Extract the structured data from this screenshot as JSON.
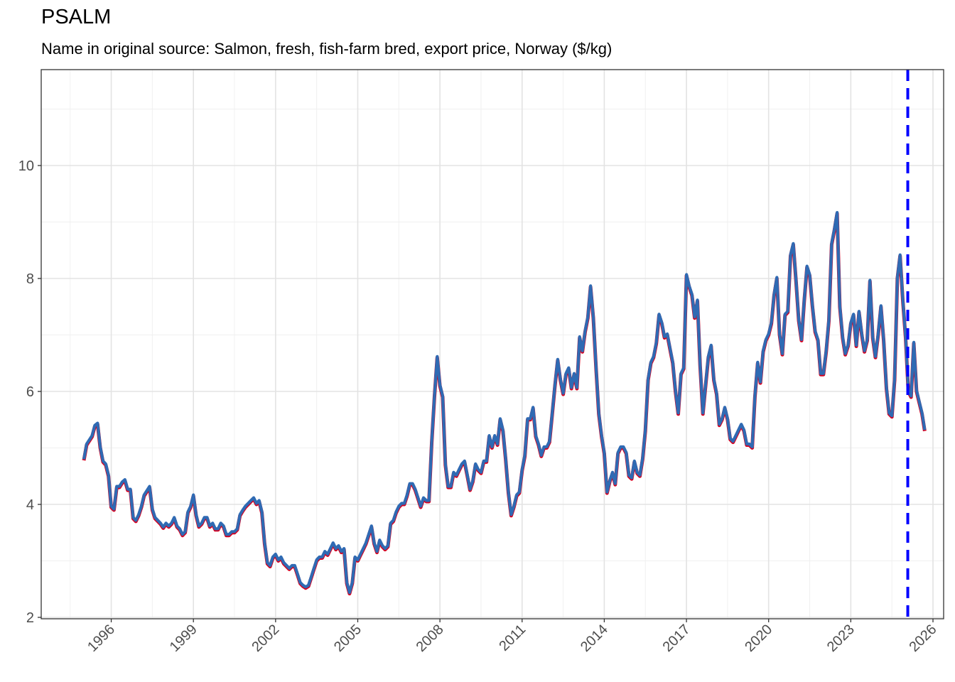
{
  "chart_data": {
    "type": "line",
    "title": "PSALM",
    "subtitle": "Name in original source: Salmon, fresh, fish-farm bred, export price, Norway ($/kg)",
    "xlabel": "",
    "ylabel": "",
    "xlim": [
      1994.5,
      2026.5
    ],
    "ylim": [
      1.97,
      11.7
    ],
    "x_ticks": [
      1996,
      1999,
      2002,
      2005,
      2008,
      2011,
      2014,
      2017,
      2020,
      2023,
      2026
    ],
    "x_tick_labels": [
      "1996",
      "1999",
      "2002",
      "2005",
      "2008",
      "2011",
      "2014",
      "2017",
      "2020",
      "2023",
      "2026"
    ],
    "y_ticks": [
      2,
      4,
      6,
      8,
      10
    ],
    "y_tick_labels": [
      "2",
      "4",
      "6",
      "8",
      "10"
    ],
    "grid": true,
    "legend": "none",
    "vline": {
      "x": 2025.08,
      "style": "dashed",
      "color": "#0000ff"
    },
    "colors": {
      "series_a": "#d7001f",
      "series_b": "#2f6ab3",
      "vline": "#0000ff"
    },
    "series": [
      {
        "color": "#d7001f",
        "points": [
          [
            1995.0,
            4.78
          ],
          [
            1995.1,
            5.05
          ],
          [
            1995.3,
            5.2
          ],
          [
            1995.4,
            5.38
          ],
          [
            1995.5,
            5.42
          ],
          [
            1995.6,
            5.0
          ],
          [
            1995.7,
            4.75
          ],
          [
            1995.8,
            4.7
          ],
          [
            1995.9,
            4.5
          ],
          [
            1996.0,
            3.95
          ],
          [
            1996.1,
            3.9
          ],
          [
            1996.2,
            4.3
          ],
          [
            1996.3,
            4.3
          ],
          [
            1996.4,
            4.38
          ],
          [
            1996.5,
            4.42
          ],
          [
            1996.6,
            4.25
          ],
          [
            1996.7,
            4.25
          ],
          [
            1996.8,
            3.75
          ],
          [
            1996.9,
            3.7
          ],
          [
            1997.0,
            3.8
          ],
          [
            1997.1,
            3.95
          ],
          [
            1997.2,
            4.15
          ],
          [
            1997.4,
            4.3
          ],
          [
            1997.5,
            3.9
          ],
          [
            1997.6,
            3.75
          ],
          [
            1997.8,
            3.65
          ],
          [
            1997.9,
            3.58
          ],
          [
            1998.0,
            3.65
          ],
          [
            1998.1,
            3.6
          ],
          [
            1998.2,
            3.65
          ],
          [
            1998.3,
            3.75
          ],
          [
            1998.4,
            3.6
          ],
          [
            1998.5,
            3.55
          ],
          [
            1998.6,
            3.45
          ],
          [
            1998.7,
            3.5
          ],
          [
            1998.8,
            3.85
          ],
          [
            1998.9,
            3.95
          ],
          [
            1999.0,
            4.15
          ],
          [
            1999.1,
            3.8
          ],
          [
            1999.2,
            3.6
          ],
          [
            1999.3,
            3.65
          ],
          [
            1999.4,
            3.75
          ],
          [
            1999.5,
            3.75
          ],
          [
            1999.6,
            3.6
          ],
          [
            1999.7,
            3.65
          ],
          [
            1999.8,
            3.55
          ],
          [
            1999.9,
            3.55
          ],
          [
            2000.0,
            3.65
          ],
          [
            2000.1,
            3.6
          ],
          [
            2000.2,
            3.45
          ],
          [
            2000.3,
            3.45
          ],
          [
            2000.4,
            3.5
          ],
          [
            2000.5,
            3.5
          ],
          [
            2000.6,
            3.55
          ],
          [
            2000.7,
            3.8
          ],
          [
            2000.8,
            3.88
          ],
          [
            2000.9,
            3.95
          ],
          [
            2001.0,
            4.0
          ],
          [
            2001.1,
            4.05
          ],
          [
            2001.2,
            4.1
          ],
          [
            2001.3,
            4.0
          ],
          [
            2001.4,
            4.05
          ],
          [
            2001.5,
            3.85
          ],
          [
            2001.6,
            3.3
          ],
          [
            2001.7,
            2.95
          ],
          [
            2001.8,
            2.9
          ],
          [
            2001.9,
            3.05
          ],
          [
            2002.0,
            3.1
          ],
          [
            2002.1,
            3.0
          ],
          [
            2002.2,
            3.05
          ],
          [
            2002.3,
            2.95
          ],
          [
            2002.4,
            2.9
          ],
          [
            2002.5,
            2.85
          ],
          [
            2002.6,
            2.9
          ],
          [
            2002.7,
            2.9
          ],
          [
            2002.8,
            2.75
          ],
          [
            2002.9,
            2.6
          ],
          [
            2003.0,
            2.55
          ],
          [
            2003.1,
            2.52
          ],
          [
            2003.2,
            2.55
          ],
          [
            2003.3,
            2.7
          ],
          [
            2003.4,
            2.85
          ],
          [
            2003.5,
            3.0
          ],
          [
            2003.6,
            3.05
          ],
          [
            2003.7,
            3.05
          ],
          [
            2003.8,
            3.15
          ],
          [
            2003.9,
            3.1
          ],
          [
            2004.0,
            3.2
          ],
          [
            2004.1,
            3.3
          ],
          [
            2004.2,
            3.2
          ],
          [
            2004.3,
            3.25
          ],
          [
            2004.4,
            3.15
          ],
          [
            2004.5,
            3.2
          ],
          [
            2004.6,
            2.6
          ],
          [
            2004.7,
            2.42
          ],
          [
            2004.8,
            2.6
          ],
          [
            2004.9,
            3.05
          ],
          [
            2005.0,
            3.0
          ],
          [
            2005.1,
            3.1
          ],
          [
            2005.2,
            3.2
          ],
          [
            2005.3,
            3.3
          ],
          [
            2005.4,
            3.45
          ],
          [
            2005.5,
            3.6
          ],
          [
            2005.6,
            3.3
          ],
          [
            2005.7,
            3.15
          ],
          [
            2005.8,
            3.35
          ],
          [
            2005.9,
            3.25
          ],
          [
            2006.0,
            3.2
          ],
          [
            2006.1,
            3.25
          ],
          [
            2006.2,
            3.65
          ],
          [
            2006.3,
            3.7
          ],
          [
            2006.4,
            3.85
          ],
          [
            2006.5,
            3.95
          ],
          [
            2006.6,
            4.0
          ],
          [
            2006.7,
            4.0
          ],
          [
            2006.8,
            4.15
          ],
          [
            2006.9,
            4.35
          ],
          [
            2007.0,
            4.35
          ],
          [
            2007.1,
            4.25
          ],
          [
            2007.2,
            4.1
          ],
          [
            2007.3,
            3.95
          ],
          [
            2007.4,
            4.1
          ],
          [
            2007.5,
            4.05
          ],
          [
            2007.6,
            4.05
          ],
          [
            2007.7,
            5.1
          ],
          [
            2007.8,
            5.9
          ],
          [
            2007.9,
            6.6
          ],
          [
            2008.0,
            6.1
          ],
          [
            2008.1,
            5.9
          ],
          [
            2008.2,
            4.7
          ],
          [
            2008.3,
            4.3
          ],
          [
            2008.4,
            4.3
          ],
          [
            2008.5,
            4.55
          ],
          [
            2008.6,
            4.5
          ],
          [
            2008.7,
            4.6
          ],
          [
            2008.8,
            4.7
          ],
          [
            2008.9,
            4.75
          ],
          [
            2009.0,
            4.5
          ],
          [
            2009.1,
            4.25
          ],
          [
            2009.2,
            4.4
          ],
          [
            2009.3,
            4.7
          ],
          [
            2009.4,
            4.6
          ],
          [
            2009.5,
            4.55
          ],
          [
            2009.6,
            4.75
          ],
          [
            2009.7,
            4.75
          ],
          [
            2009.8,
            5.2
          ],
          [
            2009.9,
            5.0
          ],
          [
            2010.0,
            5.2
          ],
          [
            2010.1,
            5.05
          ],
          [
            2010.2,
            5.5
          ],
          [
            2010.3,
            5.3
          ],
          [
            2010.4,
            4.8
          ],
          [
            2010.5,
            4.2
          ],
          [
            2010.6,
            3.8
          ],
          [
            2010.7,
            3.95
          ],
          [
            2010.8,
            4.15
          ],
          [
            2010.9,
            4.2
          ],
          [
            2011.0,
            4.6
          ],
          [
            2011.1,
            4.85
          ],
          [
            2011.2,
            5.5
          ],
          [
            2011.3,
            5.5
          ],
          [
            2011.4,
            5.7
          ],
          [
            2011.5,
            5.2
          ],
          [
            2011.6,
            5.05
          ],
          [
            2011.7,
            4.85
          ],
          [
            2011.8,
            5.0
          ],
          [
            2011.9,
            5.0
          ],
          [
            2012.0,
            5.1
          ],
          [
            2012.1,
            5.6
          ],
          [
            2012.2,
            6.1
          ],
          [
            2012.3,
            6.55
          ],
          [
            2012.4,
            6.2
          ],
          [
            2012.5,
            5.95
          ],
          [
            2012.6,
            6.3
          ],
          [
            2012.7,
            6.4
          ],
          [
            2012.8,
            6.05
          ],
          [
            2012.9,
            6.3
          ],
          [
            2013.0,
            6.05
          ],
          [
            2013.1,
            6.95
          ],
          [
            2013.2,
            6.7
          ],
          [
            2013.3,
            7.05
          ],
          [
            2013.4,
            7.3
          ],
          [
            2013.5,
            7.85
          ],
          [
            2013.6,
            7.3
          ],
          [
            2013.7,
            6.4
          ],
          [
            2013.8,
            5.6
          ],
          [
            2013.9,
            5.2
          ],
          [
            2014.0,
            4.9
          ],
          [
            2014.1,
            4.2
          ],
          [
            2014.2,
            4.4
          ],
          [
            2014.3,
            4.55
          ],
          [
            2014.4,
            4.35
          ],
          [
            2014.5,
            4.9
          ],
          [
            2014.6,
            5.0
          ],
          [
            2014.7,
            5.0
          ],
          [
            2014.8,
            4.9
          ],
          [
            2014.9,
            4.5
          ],
          [
            2015.0,
            4.45
          ],
          [
            2015.1,
            4.75
          ],
          [
            2015.2,
            4.55
          ],
          [
            2015.3,
            4.5
          ],
          [
            2015.4,
            4.8
          ],
          [
            2015.5,
            5.3
          ],
          [
            2015.6,
            6.2
          ],
          [
            2015.7,
            6.5
          ],
          [
            2015.8,
            6.6
          ],
          [
            2015.9,
            6.85
          ],
          [
            2016.0,
            7.35
          ],
          [
            2016.1,
            7.2
          ],
          [
            2016.2,
            6.95
          ],
          [
            2016.3,
            7.0
          ],
          [
            2016.4,
            6.75
          ],
          [
            2016.5,
            6.5
          ],
          [
            2016.6,
            6.0
          ],
          [
            2016.7,
            5.6
          ],
          [
            2016.8,
            6.3
          ],
          [
            2016.9,
            6.4
          ],
          [
            2017.0,
            8.05
          ],
          [
            2017.1,
            7.85
          ],
          [
            2017.2,
            7.7
          ],
          [
            2017.3,
            7.3
          ],
          [
            2017.4,
            7.6
          ],
          [
            2017.5,
            6.45
          ],
          [
            2017.6,
            5.6
          ],
          [
            2017.7,
            6.1
          ],
          [
            2017.8,
            6.6
          ],
          [
            2017.9,
            6.8
          ],
          [
            2018.0,
            6.2
          ],
          [
            2018.1,
            5.95
          ],
          [
            2018.2,
            5.4
          ],
          [
            2018.3,
            5.5
          ],
          [
            2018.4,
            5.7
          ],
          [
            2018.5,
            5.5
          ],
          [
            2018.6,
            5.15
          ],
          [
            2018.7,
            5.1
          ],
          [
            2018.8,
            5.2
          ],
          [
            2018.9,
            5.3
          ],
          [
            2019.0,
            5.4
          ],
          [
            2019.1,
            5.3
          ],
          [
            2019.2,
            5.05
          ],
          [
            2019.3,
            5.05
          ],
          [
            2019.4,
            5.0
          ],
          [
            2019.5,
            5.9
          ],
          [
            2019.6,
            6.5
          ],
          [
            2019.7,
            6.15
          ],
          [
            2019.8,
            6.7
          ],
          [
            2019.9,
            6.9
          ],
          [
            2020.0,
            7.0
          ],
          [
            2020.1,
            7.2
          ],
          [
            2020.2,
            7.7
          ],
          [
            2020.3,
            8.0
          ],
          [
            2020.4,
            7.0
          ],
          [
            2020.5,
            6.65
          ],
          [
            2020.6,
            7.35
          ],
          [
            2020.7,
            7.4
          ],
          [
            2020.8,
            8.4
          ],
          [
            2020.9,
            8.6
          ],
          [
            2021.0,
            7.95
          ],
          [
            2021.1,
            7.25
          ],
          [
            2021.2,
            6.9
          ],
          [
            2021.3,
            7.6
          ],
          [
            2021.4,
            8.2
          ],
          [
            2021.5,
            8.05
          ],
          [
            2021.6,
            7.5
          ],
          [
            2021.7,
            7.05
          ],
          [
            2021.8,
            6.9
          ],
          [
            2021.9,
            6.3
          ],
          [
            2022.0,
            6.3
          ],
          [
            2022.1,
            6.7
          ],
          [
            2022.2,
            7.25
          ],
          [
            2022.3,
            8.6
          ],
          [
            2022.4,
            8.85
          ],
          [
            2022.5,
            9.15
          ],
          [
            2022.6,
            7.5
          ],
          [
            2022.7,
            6.95
          ],
          [
            2022.8,
            6.65
          ],
          [
            2022.9,
            6.8
          ],
          [
            2023.0,
            7.2
          ],
          [
            2023.1,
            7.35
          ],
          [
            2023.2,
            6.8
          ],
          [
            2023.3,
            7.4
          ],
          [
            2023.4,
            7.0
          ],
          [
            2023.5,
            6.7
          ],
          [
            2023.6,
            6.9
          ],
          [
            2023.7,
            7.95
          ],
          [
            2023.8,
            6.95
          ],
          [
            2023.9,
            6.6
          ],
          [
            2024.0,
            7.0
          ],
          [
            2024.1,
            7.5
          ],
          [
            2024.2,
            6.9
          ],
          [
            2024.3,
            6.05
          ],
          [
            2024.4,
            5.6
          ],
          [
            2024.5,
            5.55
          ],
          [
            2024.6,
            6.2
          ],
          [
            2024.7,
            8.0
          ],
          [
            2024.8,
            8.4
          ],
          [
            2024.9,
            7.6
          ],
          [
            2025.0,
            6.95
          ],
          [
            2025.1,
            6.0
          ],
          [
            2025.2,
            5.9
          ],
          [
            2025.3,
            6.85
          ],
          [
            2025.4,
            6.0
          ],
          [
            2025.5,
            5.8
          ],
          [
            2025.6,
            5.6
          ],
          [
            2025.7,
            5.3
          ]
        ]
      }
    ]
  }
}
